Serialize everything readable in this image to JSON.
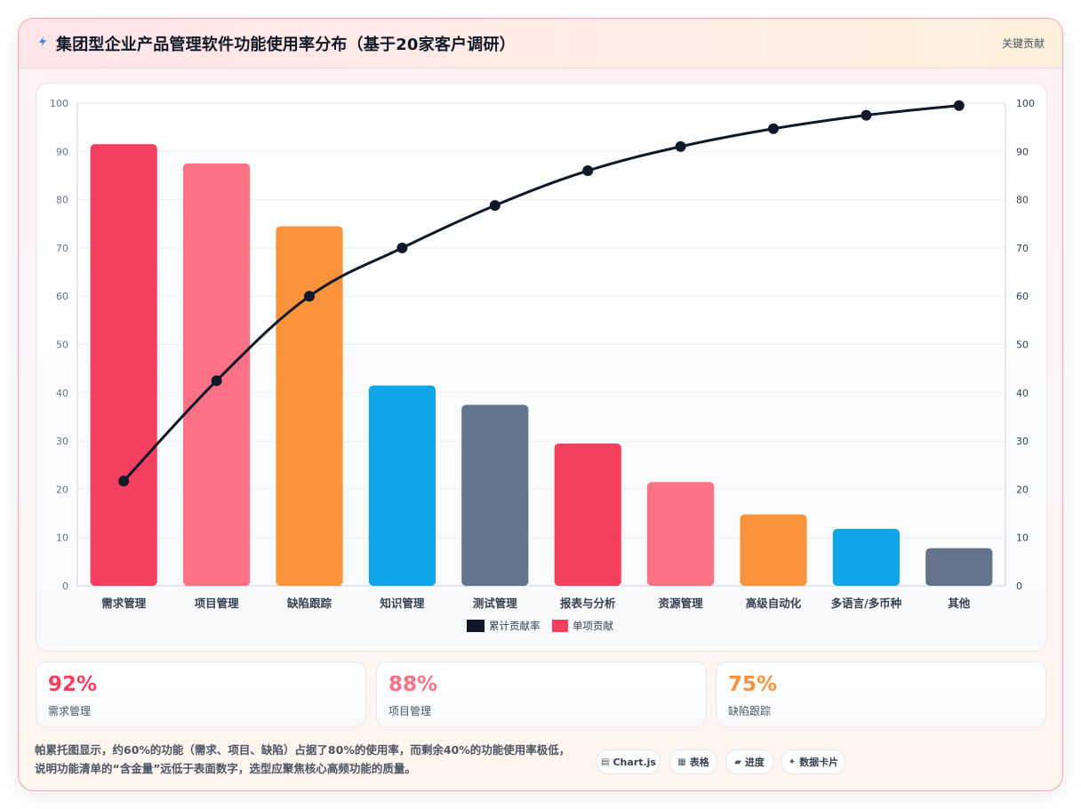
{
  "header": {
    "title": "集团型企业产品管理软件功能使用率分布（基于20家客户调研）",
    "badge": "关键贡献",
    "icon": "lightning-icon"
  },
  "chart_data": {
    "type": "bar",
    "categories": [
      "需求管理",
      "项目管理",
      "缺陷跟踪",
      "知识管理",
      "测试管理",
      "报表与分析",
      "资源管理",
      "高级自动化",
      "多语言/多币种",
      "其他"
    ],
    "series": [
      {
        "name": "单项贡献",
        "type": "bar",
        "axis": "left",
        "values": [
          91.5,
          87.5,
          74.5,
          41.5,
          37.5,
          29.5,
          21.5,
          14.8,
          11.8,
          7.8
        ],
        "colors": [
          "#f43f5e",
          "#fb7185",
          "#fb923c",
          "#0ea5e9",
          "#64748b",
          "#f43f5e",
          "#fb7185",
          "#fb923c",
          "#0ea5e9",
          "#64748b"
        ]
      },
      {
        "name": "累计贡献率",
        "type": "line",
        "axis": "right",
        "color": "#111827",
        "values": [
          21.7,
          42.5,
          60,
          70,
          78.8,
          86,
          91,
          94.7,
          97.5,
          99.5
        ]
      }
    ],
    "y_left": {
      "min": 0,
      "max": 100,
      "ticks": [
        0,
        10,
        20,
        30,
        40,
        50,
        60,
        70,
        80,
        90,
        100
      ]
    },
    "y_right": {
      "min": 0,
      "max": 100,
      "ticks": [
        0,
        10,
        20,
        30,
        40,
        50,
        60,
        70,
        80,
        90,
        100
      ]
    },
    "grid": true,
    "legend": {
      "position": "bottom",
      "order": [
        "累计贡献率",
        "单项贡献"
      ]
    }
  },
  "kpis": [
    {
      "value": "92%",
      "label": "需求管理",
      "color": "#f43f5e"
    },
    {
      "value": "88%",
      "label": "项目管理",
      "color": "#fb7185"
    },
    {
      "value": "75%",
      "label": "缺陷跟踪",
      "color": "#fb923c"
    }
  ],
  "footnote": {
    "line1": "帕累托图显示，约60%的功能（需求、项目、缺陷）占据了80%的使用率，而剩余40%的功能使用率极低，",
    "line2": "说明功能清单的“含金量”远低于表面数字，选型应聚焦核心高频功能的质量。"
  },
  "chips": [
    {
      "icon": "▤",
      "label": "Chart.js"
    },
    {
      "icon": "▦",
      "label": "表格"
    },
    {
      "icon": "▰",
      "label": "进度"
    },
    {
      "icon": "✦",
      "label": "数据卡片"
    }
  ]
}
